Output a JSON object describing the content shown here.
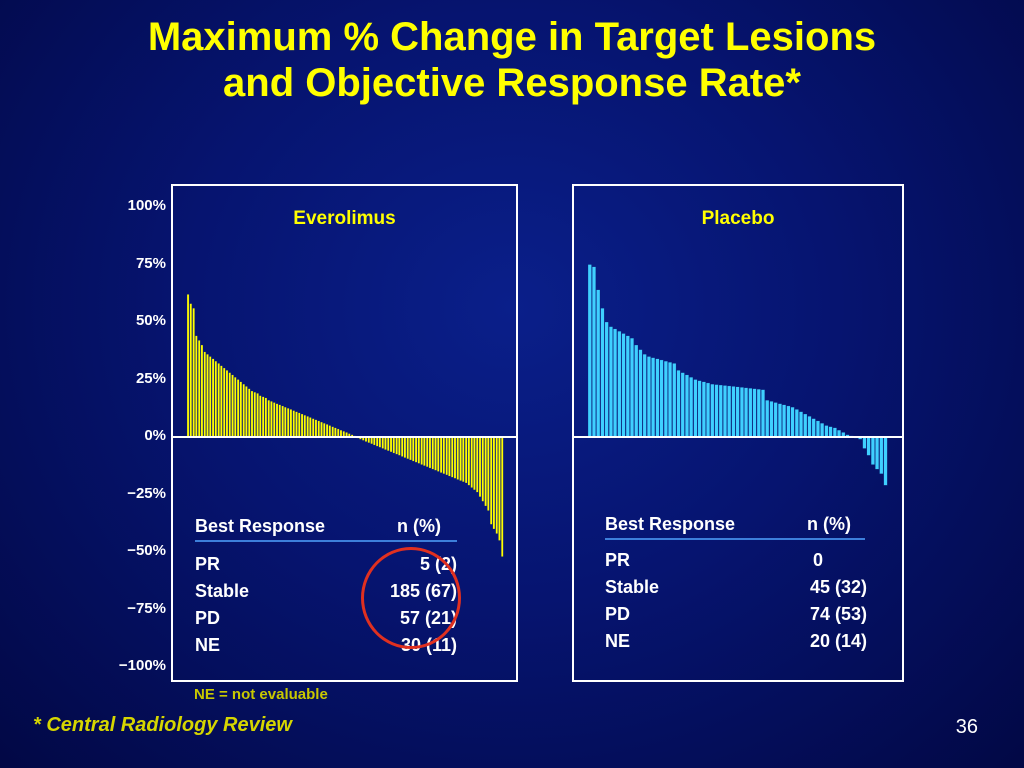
{
  "title": {
    "line1": "Maximum % Change in Target Lesions",
    "line2": "and Objective Response Rate*"
  },
  "chart_data": [
    {
      "type": "bar",
      "panel": "Everolimus",
      "ylabel": "",
      "ylim": [
        -100,
        100
      ],
      "yticks": [
        "100%",
        "75%",
        "50%",
        "25%",
        "0%",
        "−25%",
        "−50%",
        "−75%",
        "−100%"
      ],
      "bar_color": "#ffff00",
      "values": [
        62.0,
        58.0,
        56.0,
        44.0,
        42.0,
        40.0,
        37.0,
        36.0,
        35.0,
        34.0,
        33.0,
        32.0,
        31.0,
        30.0,
        29.0,
        28.0,
        27.0,
        26.0,
        25.0,
        24.0,
        23.0,
        22.0,
        21.0,
        20.0,
        19.5,
        19.0,
        18.0,
        17.5,
        17.0,
        16.0,
        15.5,
        15.0,
        14.5,
        14.0,
        13.5,
        13.0,
        12.5,
        12.0,
        11.5,
        11.0,
        10.5,
        10.0,
        9.5,
        9.0,
        8.5,
        8.0,
        7.5,
        7.0,
        6.5,
        6.0,
        5.5,
        5.0,
        4.5,
        4.0,
        3.5,
        3.0,
        2.5,
        2.0,
        1.5,
        1.0,
        0.5,
        -0.5,
        -1.0,
        -1.5,
        -2.0,
        -2.5,
        -3.0,
        -3.5,
        -4.0,
        -4.5,
        -5.0,
        -5.5,
        -6.0,
        -6.5,
        -7.0,
        -7.5,
        -8.0,
        -8.5,
        -9.0,
        -9.5,
        -10.0,
        -10.5,
        -11.0,
        -11.5,
        -12.0,
        -12.5,
        -13.0,
        -13.5,
        -14.0,
        -14.5,
        -15.0,
        -15.5,
        -16.0,
        -16.5,
        -17.0,
        -17.5,
        -18.0,
        -18.5,
        -19.0,
        -19.5,
        -20.0,
        -21.0,
        -22.0,
        -23.0,
        -24.0,
        -26.0,
        -28.0,
        -30.0,
        -32.0,
        -38.0,
        -40.0,
        -42.0,
        -45.0,
        -52.0
      ]
    },
    {
      "type": "bar",
      "panel": "Placebo",
      "ylim": [
        -100,
        100
      ],
      "bar_color": "#3fd0ff",
      "values": [
        75.0,
        74.0,
        64.0,
        56.0,
        50.0,
        48.0,
        47.0,
        46.0,
        45.0,
        44.0,
        43.0,
        40.0,
        38.0,
        36.0,
        35.0,
        34.5,
        34.0,
        33.5,
        33.0,
        32.5,
        32.0,
        29.0,
        28.0,
        27.0,
        26.0,
        25.0,
        24.5,
        24.0,
        23.5,
        23.0,
        22.8,
        22.6,
        22.4,
        22.2,
        22.0,
        21.8,
        21.6,
        21.4,
        21.2,
        21.0,
        20.8,
        20.6,
        16.0,
        15.5,
        15.0,
        14.5,
        14.0,
        13.5,
        13.0,
        12.0,
        11.0,
        10.0,
        9.0,
        8.0,
        7.0,
        6.0,
        5.0,
        4.5,
        4.0,
        3.0,
        2.0,
        1.0,
        0.5,
        -0.5,
        -1.0,
        -5.0,
        -8.0,
        -12.0,
        -14.0,
        -16.0,
        -21.0
      ]
    }
  ],
  "panels": {
    "left": {
      "label": "Everolimus",
      "table": {
        "header_response": "Best Response",
        "header_n": "n (%)",
        "rows": [
          {
            "label": "PR",
            "value": "5 (2)"
          },
          {
            "label": "Stable",
            "value": "185 (67)"
          },
          {
            "label": "PD",
            "value": "57 (21)"
          },
          {
            "label": "NE",
            "value": "30 (11)"
          }
        ]
      }
    },
    "right": {
      "label": "Placebo",
      "table": {
        "header_response": "Best Response",
        "header_n": "n (%)",
        "rows": [
          {
            "label": "PR",
            "value": "0"
          },
          {
            "label": "Stable",
            "value": "45 (32)"
          },
          {
            "label": "PD",
            "value": "74 (53)"
          },
          {
            "label": "NE",
            "value": "20 (14)"
          }
        ]
      }
    }
  },
  "footnote_ne": "NE = not evaluable",
  "footnote": "* Central Radiology Review",
  "page_number": "36",
  "colors": {
    "background": "#061470",
    "title": "#ffff00",
    "everolimus_bars": "#ffff00",
    "placebo_bars": "#3fd0ff",
    "highlight_circle": "#e03020"
  }
}
